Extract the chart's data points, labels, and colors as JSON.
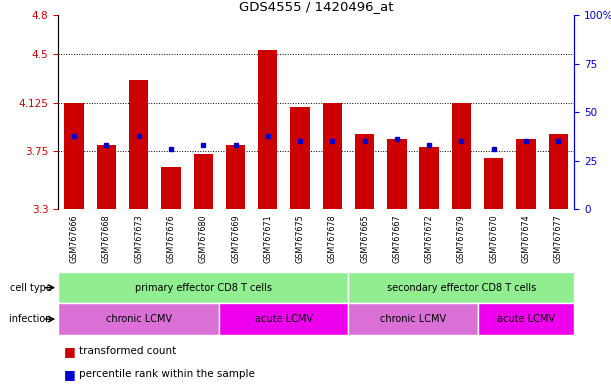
{
  "title": "GDS4555 / 1420496_at",
  "samples": [
    "GSM767666",
    "GSM767668",
    "GSM767673",
    "GSM767676",
    "GSM767680",
    "GSM767669",
    "GSM767671",
    "GSM767675",
    "GSM767678",
    "GSM767665",
    "GSM767667",
    "GSM767672",
    "GSM767679",
    "GSM767670",
    "GSM767674",
    "GSM767677"
  ],
  "red_values": [
    4.12,
    3.8,
    4.3,
    3.63,
    3.73,
    3.8,
    4.53,
    4.09,
    4.125,
    3.88,
    3.84,
    3.78,
    4.12,
    3.7,
    3.84,
    3.88
  ],
  "blue_values": [
    3.87,
    3.8,
    3.87,
    3.77,
    3.8,
    3.8,
    3.87,
    3.83,
    3.83,
    3.83,
    3.84,
    3.8,
    3.83,
    3.77,
    3.83,
    3.83
  ],
  "y_min": 3.3,
  "y_max": 4.8,
  "yticks_left": [
    3.3,
    3.75,
    4.125,
    4.5,
    4.8
  ],
  "yticks_right": [
    0,
    25,
    50,
    75,
    100
  ],
  "bar_color": "#cc0000",
  "blue_color": "#0000cc",
  "gray_bg": "#d0d0d0",
  "green_color": "#90ee90",
  "violet_color": "#da70d6",
  "magenta_color": "#ee00ee",
  "legend_red": "transformed count",
  "legend_blue": "percentile rank within the sample",
  "tick_color_left": "#cc0000",
  "tick_color_right": "#0000cc",
  "cell_groups": [
    {
      "label": "primary effector CD8 T cells",
      "start": 0,
      "end": 9
    },
    {
      "label": "secondary effector CD8 T cells",
      "start": 9,
      "end": 16
    }
  ],
  "infection_groups": [
    {
      "label": "chronic LCMV",
      "start": 0,
      "end": 5,
      "type": "chronic"
    },
    {
      "label": "acute LCMV",
      "start": 5,
      "end": 9,
      "type": "acute"
    },
    {
      "label": "chronic LCMV",
      "start": 9,
      "end": 13,
      "type": "chronic"
    },
    {
      "label": "acute LCMV",
      "start": 13,
      "end": 16,
      "type": "acute"
    }
  ]
}
